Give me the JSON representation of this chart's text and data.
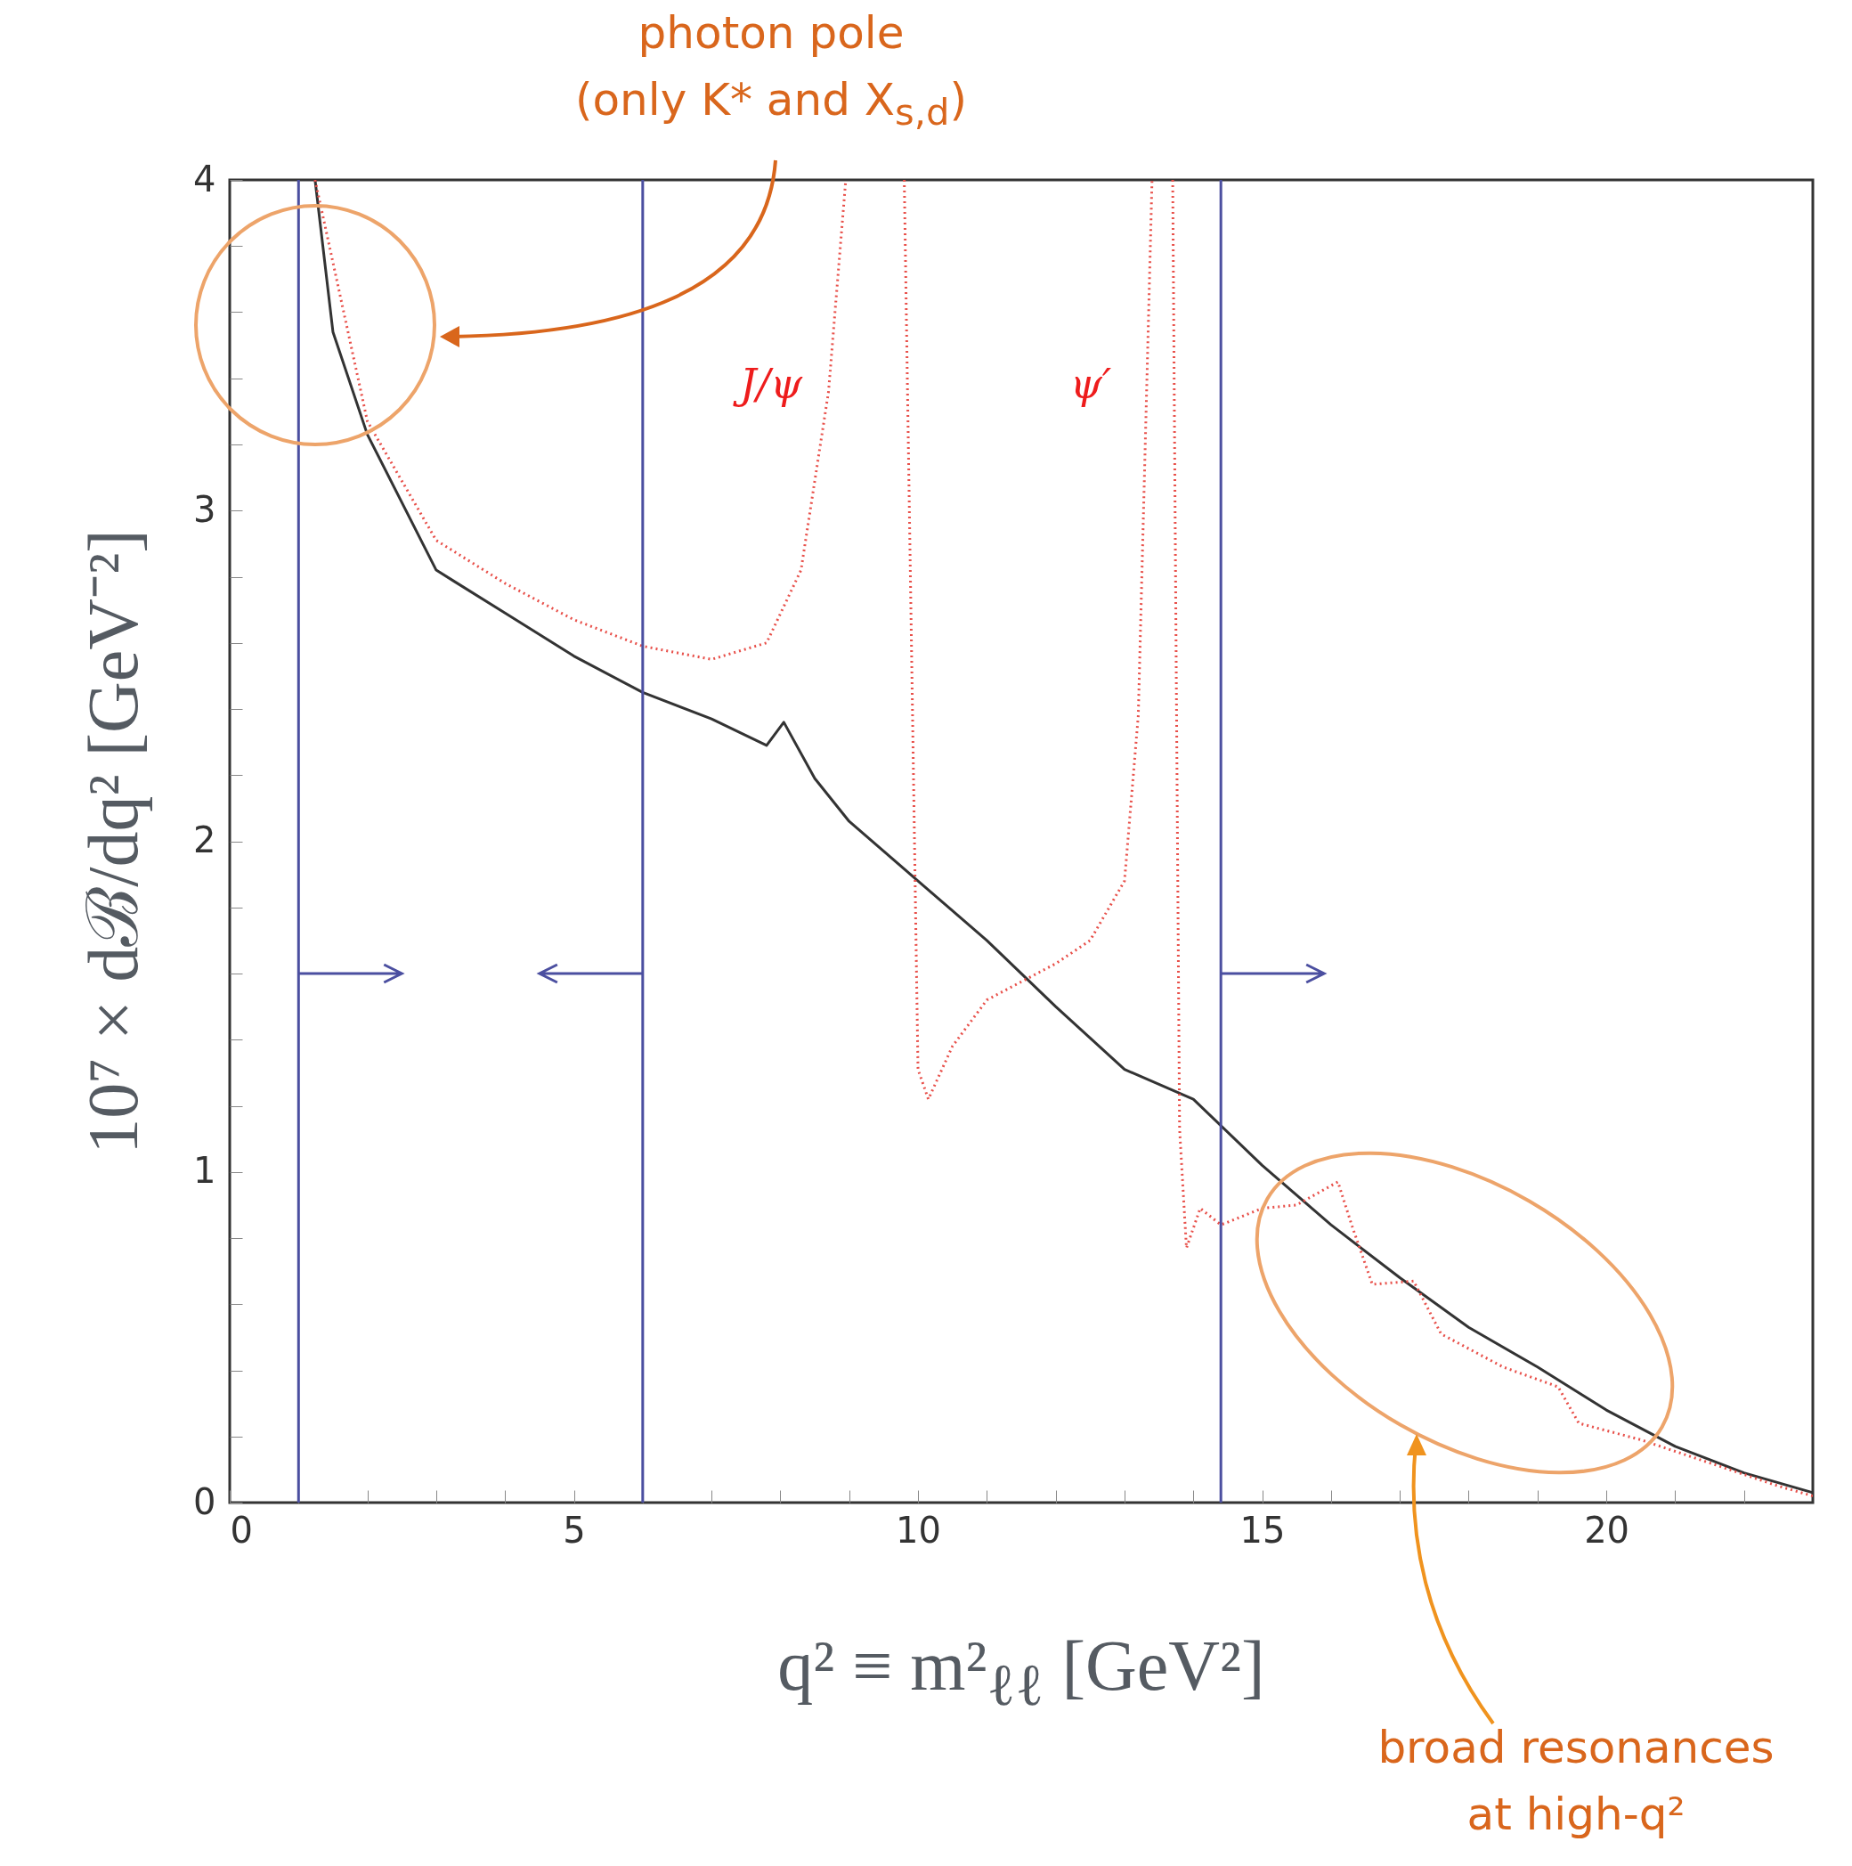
{
  "chart_data": {
    "type": "line",
    "xlabel": "q² ≡ m²$_{ℓℓ}$ [GeV²]",
    "ylabel": "10⁷ × dℬ/dq² [GeV⁻²]",
    "xlim": [
      0,
      23
    ],
    "ylim": [
      0,
      4
    ],
    "xticks": [
      0,
      {
        "value": 1,
        "label": null
      },
      {
        "value": 2,
        "label": null
      },
      {
        "value": 3,
        "label": null
      },
      {
        "value": 4,
        "label": null
      },
      5,
      {
        "value": 6,
        "label": null
      },
      {
        "value": 7,
        "label": null
      },
      {
        "value": 8,
        "label": null
      },
      {
        "value": 9,
        "label": null
      },
      10,
      {
        "value": 11,
        "label": null
      },
      {
        "value": 12,
        "label": null
      },
      {
        "value": 13,
        "label": null
      },
      {
        "value": 14,
        "label": null
      },
      15,
      {
        "value": 16,
        "label": null
      },
      {
        "value": 17,
        "label": null
      },
      {
        "value": 18,
        "label": null
      },
      {
        "value": 19,
        "label": null
      },
      20,
      {
        "value": 21,
        "label": null
      },
      {
        "value": 22,
        "label": null
      }
    ],
    "yticks": [
      0,
      {
        "value": 0.2,
        "label": null
      },
      {
        "value": 0.4,
        "label": null
      },
      {
        "value": 0.6,
        "label": null
      },
      {
        "value": 0.8,
        "label": null
      },
      1,
      {
        "value": 1.2,
        "label": null
      },
      {
        "value": 1.4,
        "label": null
      },
      {
        "value": 1.6,
        "label": null
      },
      {
        "value": 1.8,
        "label": null
      },
      2,
      {
        "value": 2.2,
        "label": null
      },
      {
        "value": 2.4,
        "label": null
      },
      {
        "value": 2.6,
        "label": null
      },
      {
        "value": 2.8,
        "label": null
      },
      3,
      {
        "value": 3.2,
        "label": null
      },
      {
        "value": 3.4,
        "label": null
      },
      {
        "value": 3.6,
        "label": null
      },
      {
        "value": 3.8,
        "label": null
      },
      4
    ],
    "grid": false,
    "marker": "none",
    "series": [
      {
        "color": "#333333",
        "line_style": "solid",
        "x": [
          1.24,
          1.5,
          2,
          3,
          4,
          5,
          6,
          7,
          7.8,
          8.05,
          8.5,
          9,
          10,
          11,
          12,
          13,
          14,
          15,
          16,
          17,
          18,
          19,
          20,
          21,
          22,
          23
        ],
        "values": [
          4,
          3.54,
          3.23,
          2.82,
          2.69,
          2.56,
          2.45,
          2.37,
          2.29,
          2.36,
          2.19,
          2.06,
          1.88,
          1.7,
          1.5,
          1.31,
          1.22,
          1.02,
          0.84,
          0.68,
          0.53,
          0.41,
          0.28,
          0.17,
          0.09,
          0.03
        ]
      },
      {
        "color": "#e8504a",
        "line_style": "dotted",
        "x": [
          1.24,
          2,
          3,
          4,
          5,
          6,
          7,
          7.8,
          8.3,
          8.7,
          8.95,
          9.4,
          9.8,
          10,
          10.15,
          10.5,
          11,
          12,
          12.5,
          13,
          13.2,
          13.4,
          13.55,
          13.7,
          13.8,
          13.9,
          14.1,
          14.4,
          15,
          15.5,
          16.1,
          16.3,
          16.6,
          17.2,
          17.6,
          18.5,
          19.3,
          19.6,
          20.5,
          21.5,
          22.5,
          23
        ],
        "values": [
          4,
          3.27,
          2.91,
          2.78,
          2.67,
          2.59,
          2.55,
          2.6,
          2.82,
          3.36,
          4,
          null,
          4,
          1.31,
          1.22,
          1.38,
          1.52,
          1.63,
          1.7,
          1.88,
          2.38,
          4,
          null,
          4,
          1.13,
          0.77,
          0.89,
          0.84,
          0.89,
          0.9,
          0.97,
          0.84,
          0.66,
          0.67,
          0.51,
          0.41,
          0.35,
          0.24,
          0.19,
          0.12,
          0.05,
          0.02
        ]
      }
    ],
    "ref_lines": [
      {
        "axis": "x",
        "value": 1,
        "color": "#4b4fa0"
      },
      {
        "axis": "x",
        "value": 6,
        "color": "#4b4fa0"
      },
      {
        "axis": "x",
        "value": 14.4,
        "color": "#4b4fa0"
      }
    ],
    "annotations": [
      "photon pole\n(only K* and X$_{s,d}$)",
      "J/ψ",
      "ψ′",
      "broad resonances\nat high-q²"
    ]
  }
}
